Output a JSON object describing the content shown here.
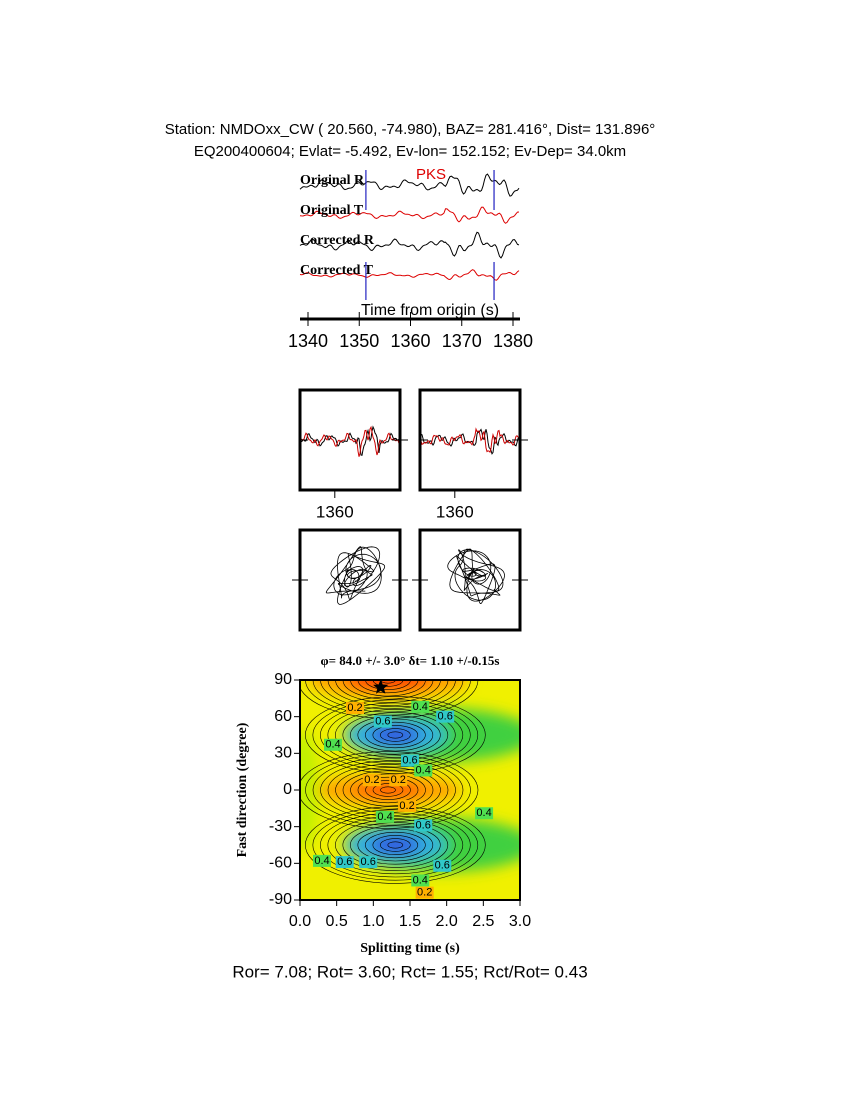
{
  "header": {
    "line1": "Station: NMDOxx_CW (  20.560,  -74.980), BAZ=  281.416°, Dist=  131.896°",
    "line2": "EQ200400604; Evlat=  -5.492, Ev-lon= 152.152; Ev-Dep= 34.0km"
  },
  "chart_data": [
    {
      "type": "waveform",
      "traces": [
        {
          "name": "Original R",
          "color": "#000000"
        },
        {
          "name": "Original T",
          "color": "#dd0000"
        },
        {
          "name": "Corrected R",
          "color": "#000000"
        },
        {
          "name": "Corrected T",
          "color": "#dd0000"
        }
      ],
      "phase": "PKS",
      "xlabel": "Time from origin (s)",
      "xlim": [
        1338.5,
        1381.5
      ],
      "xticks": [
        1340,
        1350,
        1360,
        1370,
        1380
      ],
      "window": [
        1351.3,
        1376.3
      ],
      "window_color": "#2020c0"
    },
    {
      "type": "window",
      "xlim": [
        1351.3,
        1376.3
      ],
      "xticks": [
        1360
      ]
    },
    {
      "type": "contour",
      "title": "φ= 84.0 +/- 3.0° δt= 1.10 +/-0.15s",
      "xlabel": "Splitting time (s)",
      "ylabel": "Fast direction (degree)",
      "xlim": [
        0,
        3
      ],
      "ylim": [
        -90,
        90
      ],
      "xticks": [
        {
          "value": 0,
          "label": "0.0"
        },
        {
          "value": 0.5,
          "label": "0.5"
        },
        {
          "value": 1,
          "label": "1.0"
        },
        {
          "value": 1.5,
          "label": "1.5"
        },
        {
          "value": 2,
          "label": "2.0"
        },
        {
          "value": 2.5,
          "label": "2.5"
        },
        {
          "value": 3,
          "label": "3.0"
        }
      ],
      "yticks": [
        90,
        60,
        30,
        0,
        -30,
        -60,
        -90
      ],
      "best": {
        "x": 1.1,
        "y": 84
      },
      "contour_labels": [
        {
          "value": 0.2,
          "x": 0.75,
          "y": 67
        },
        {
          "value": 0.4,
          "x": 1.64,
          "y": 68
        },
        {
          "value": 0.6,
          "x": 1.98,
          "y": 60
        },
        {
          "value": 0.6,
          "x": 1.13,
          "y": 56
        },
        {
          "value": 0.4,
          "x": 0.45,
          "y": 37
        },
        {
          "value": 0.6,
          "x": 1.5,
          "y": 24
        },
        {
          "value": 0.4,
          "x": 1.68,
          "y": 16
        },
        {
          "value": 0.2,
          "x": 0.98,
          "y": 8
        },
        {
          "value": 0.2,
          "x": 1.34,
          "y": 8
        },
        {
          "value": 0.2,
          "x": 1.46,
          "y": -13
        },
        {
          "value": 0.4,
          "x": 1.16,
          "y": -22
        },
        {
          "value": 0.6,
          "x": 1.68,
          "y": -29
        },
        {
          "value": 0.4,
          "x": 2.51,
          "y": -19
        },
        {
          "value": 0.4,
          "x": 0.3,
          "y": -58
        },
        {
          "value": 0.6,
          "x": 0.61,
          "y": -59
        },
        {
          "value": 0.6,
          "x": 0.93,
          "y": -59
        },
        {
          "value": 0.6,
          "x": 1.94,
          "y": -62
        },
        {
          "value": 0.4,
          "x": 1.64,
          "y": -74
        },
        {
          "value": 0.2,
          "x": 1.7,
          "y": -84
        }
      ]
    }
  ],
  "footer": "Ror= 7.08; Rot= 3.60; Rct= 1.55; Rct/Rot= 0.43"
}
